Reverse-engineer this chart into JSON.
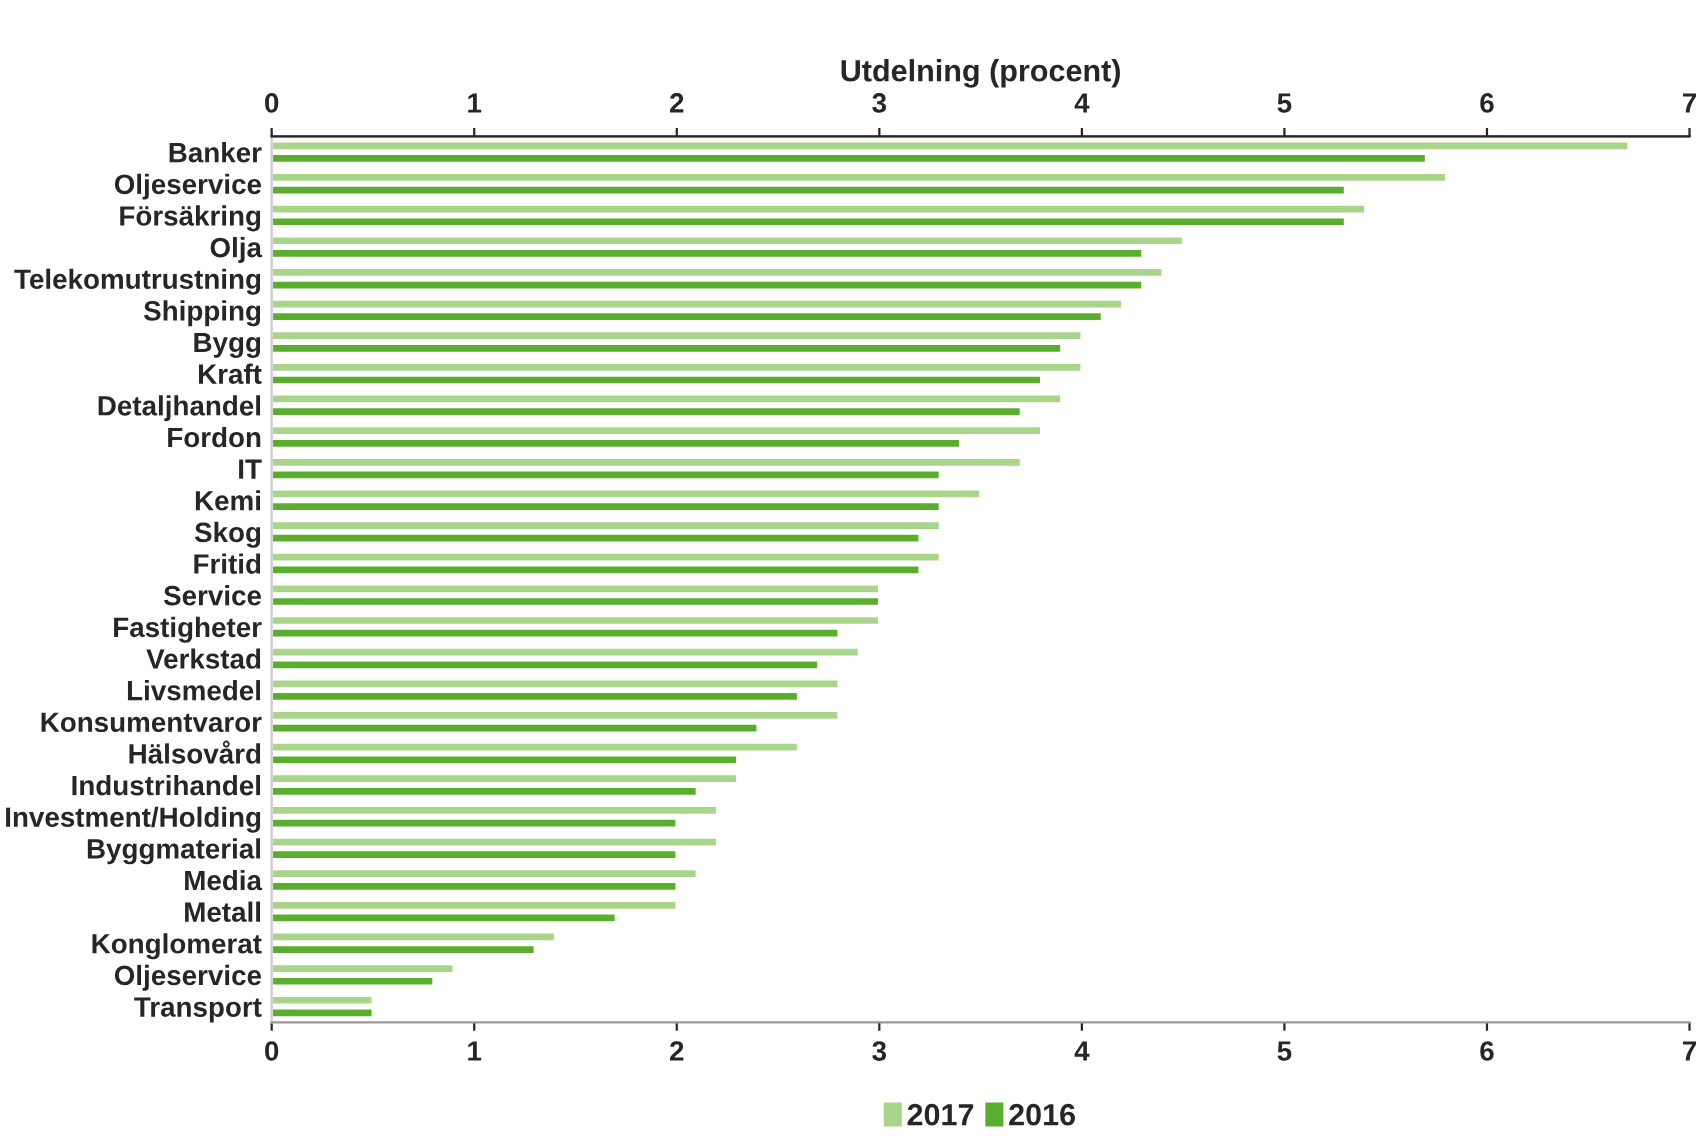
{
  "chart_data": {
    "type": "bar",
    "orientation": "horizontal",
    "x2label": "Utdelning (procent)",
    "categories": [
      "Banker",
      "Oljeservice",
      "Försäkring",
      "Olja",
      "Telekomutrustning",
      "Shipping",
      "Bygg",
      "Kraft",
      "Detaljhandel",
      "Fordon",
      "IT",
      "Kemi",
      "Skog",
      "Fritid",
      "Service",
      "Fastigheter",
      "Verkstad",
      "Livsmedel",
      "Konsumentvaror",
      "Hälsovård",
      "Industrihandel",
      "Investment/Holding",
      "Byggmaterial",
      "Media",
      "Metall",
      "Konglomerat",
      "Oljeservice",
      "Transport"
    ],
    "series": [
      {
        "name": "2017",
        "color": "#a8d58a",
        "values": [
          6.7,
          5.8,
          5.4,
          4.5,
          4.4,
          4.2,
          4.0,
          4.0,
          3.9,
          3.8,
          3.7,
          3.5,
          3.3,
          3.3,
          3.0,
          3.0,
          2.9,
          2.8,
          2.8,
          2.6,
          2.3,
          2.2,
          2.2,
          2.1,
          2.0,
          1.4,
          0.9,
          0.5
        ]
      },
      {
        "name": "2016",
        "color": "#5aae2e",
        "values": [
          5.7,
          5.3,
          5.3,
          4.3,
          4.3,
          4.1,
          3.9,
          3.8,
          3.7,
          3.4,
          3.3,
          3.3,
          3.2,
          3.2,
          3.0,
          2.8,
          2.7,
          2.6,
          2.4,
          2.3,
          2.1,
          2.0,
          2.0,
          2.0,
          1.7,
          1.3,
          0.8,
          0.5
        ]
      }
    ],
    "xlim": [
      0,
      7
    ],
    "xticks": [
      0,
      1,
      2,
      3,
      4,
      5,
      6,
      7
    ],
    "x2lim": [
      0,
      7
    ],
    "x2ticks": [
      0,
      1,
      2,
      3,
      4,
      5,
      6,
      7
    ],
    "legend": "bottom",
    "grid": false
  }
}
